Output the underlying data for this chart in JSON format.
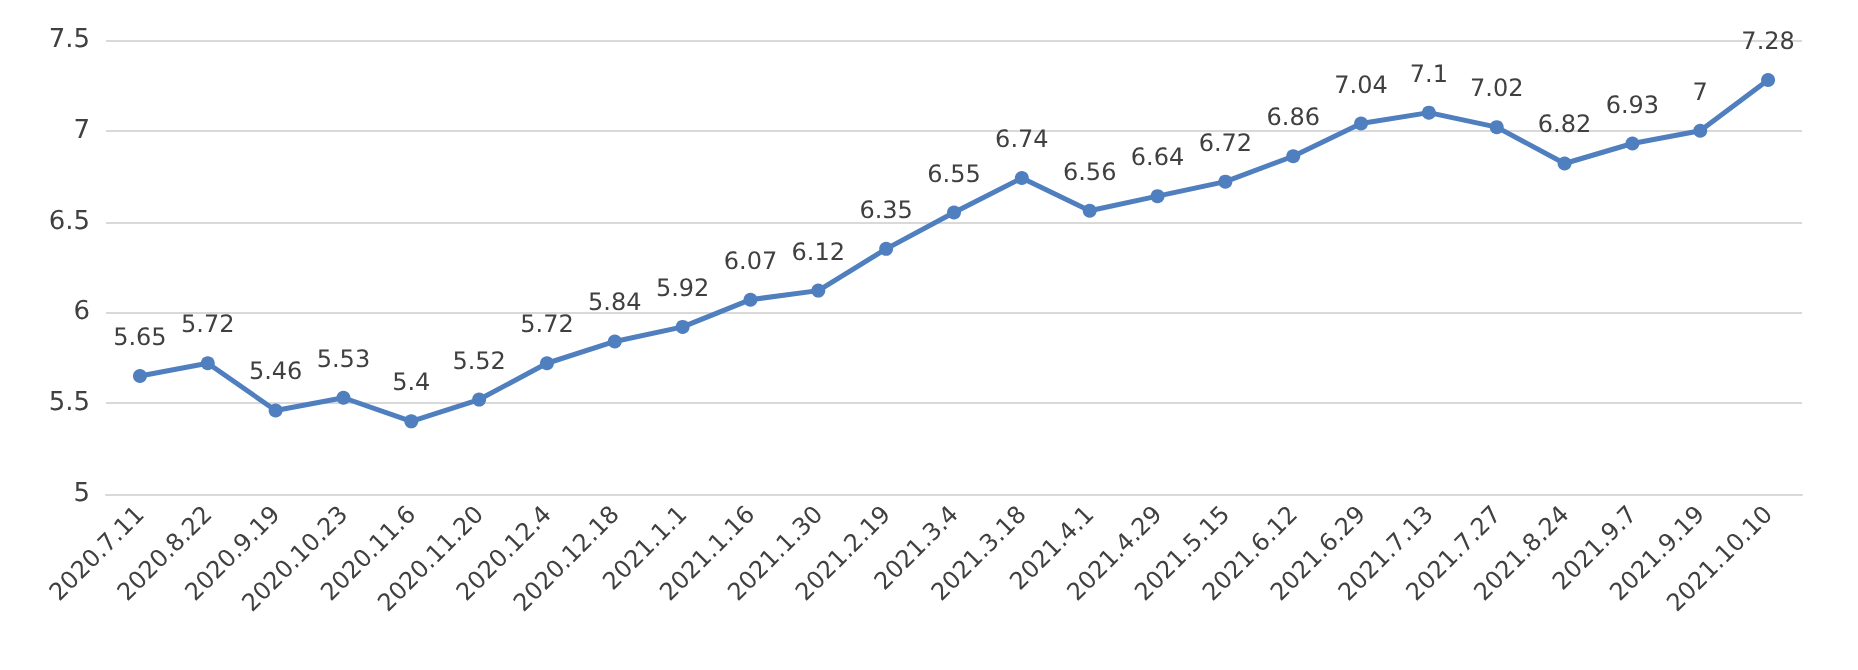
{
  "chart_data": {
    "type": "line",
    "categories": [
      "2020.7.11",
      "2020.8.22",
      "2020.9.19",
      "2020.10.23",
      "2020.11.6",
      "2020.11.20",
      "2020.12.4",
      "2020.12.18",
      "2021.1.1",
      "2021.1.16",
      "2021.1.30",
      "2021.2.19",
      "2021.3.4",
      "2021.3.18",
      "2021.4.1",
      "2021.4.29",
      "2021.5.15",
      "2021.6.12",
      "2021.6.29",
      "2021.7.13",
      "2021.7.27",
      "2021.8.24",
      "2021.9.7",
      "2021.9.19",
      "2021.10.10"
    ],
    "series": [
      {
        "color": "#4f7fbe",
        "values": [
          5.65,
          5.72,
          5.46,
          5.53,
          5.4,
          5.52,
          5.72,
          5.84,
          5.92,
          6.07,
          6.12,
          6.35,
          6.55,
          6.74,
          6.56,
          6.64,
          6.72,
          6.86,
          7.04,
          7.1,
          7.02,
          6.82,
          6.93,
          7,
          7.28
        ]
      }
    ],
    "ylim": [
      5,
      7.5
    ],
    "yticks": [
      5,
      5.5,
      6,
      6.5,
      7,
      7.5
    ],
    "grid": "y",
    "data_labels": true,
    "marker": "circle",
    "line_style": "solid"
  }
}
